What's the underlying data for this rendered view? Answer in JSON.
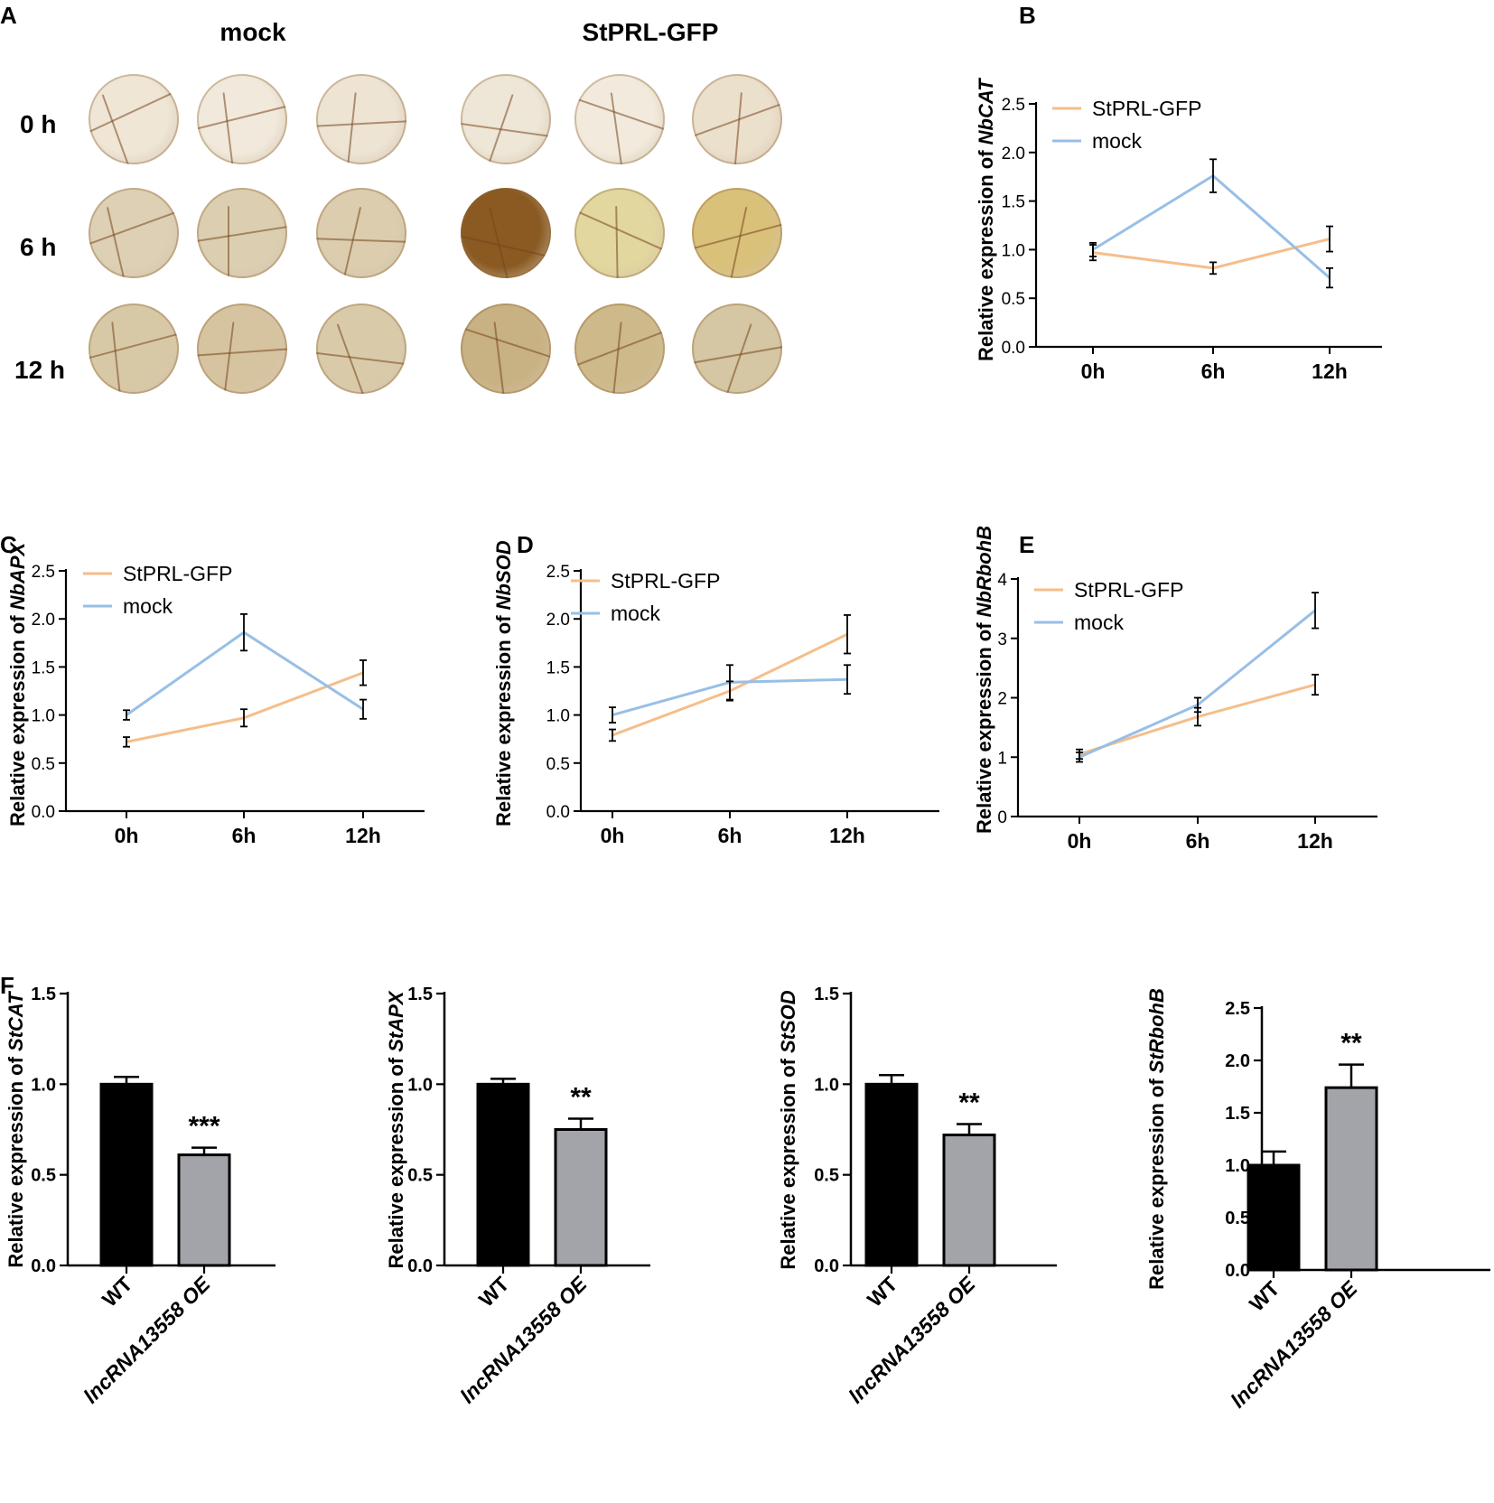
{
  "panel_letters": {
    "a": "A",
    "b": "B",
    "c": "C",
    "d": "D",
    "e": "E",
    "f": "F"
  },
  "photo": {
    "columns": [
      "mock",
      "StPRL-GFP"
    ],
    "rows": [
      "0 h",
      "6 h",
      "12 h"
    ]
  },
  "colors": {
    "stprl": "#f5be8a",
    "mock": "#98bfe6",
    "error": "#000000",
    "wt_bar": "#000000",
    "oe_bar": "#a3a3aa"
  },
  "chart_data": [
    {
      "id": "B",
      "type": "line",
      "gene": "NbCAT",
      "ylabel_prefix": "Relative expression of ",
      "categories": [
        "0h",
        "6h",
        "12h"
      ],
      "ylim": [
        0,
        2.5
      ],
      "yticks": [
        "0.0",
        "0.5",
        "1.0",
        "1.5",
        "2.0",
        "2.5"
      ],
      "series": [
        {
          "name": "StPRL-GFP",
          "values": [
            0.97,
            0.81,
            1.11
          ],
          "errors": [
            0.08,
            0.06,
            0.13
          ]
        },
        {
          "name": "mock",
          "values": [
            1.0,
            1.76,
            0.71
          ],
          "errors": [
            0.07,
            0.17,
            0.1
          ]
        }
      ]
    },
    {
      "id": "C",
      "type": "line",
      "gene": "NbAPX",
      "ylabel_prefix": "Relative expression of ",
      "categories": [
        "0h",
        "6h",
        "12h"
      ],
      "ylim": [
        0,
        2.5
      ],
      "yticks": [
        "0.0",
        "0.5",
        "1.0",
        "1.5",
        "2.0",
        "2.5"
      ],
      "series": [
        {
          "name": "StPRL-GFP",
          "values": [
            0.72,
            0.97,
            1.44
          ],
          "errors": [
            0.05,
            0.09,
            0.13
          ]
        },
        {
          "name": "mock",
          "values": [
            1.0,
            1.86,
            1.06
          ],
          "errors": [
            0.05,
            0.19,
            0.1
          ]
        }
      ]
    },
    {
      "id": "D",
      "type": "line",
      "gene": "NbSOD",
      "ylabel_prefix": "Relative expression of ",
      "categories": [
        "0h",
        "6h",
        "12h"
      ],
      "ylim": [
        0,
        2.5
      ],
      "yticks": [
        "0.0",
        "0.5",
        "1.0",
        "1.5",
        "2.0",
        "2.5"
      ],
      "series": [
        {
          "name": "StPRL-GFP",
          "values": [
            0.79,
            1.25,
            1.84
          ],
          "errors": [
            0.06,
            0.1,
            0.2
          ]
        },
        {
          "name": "mock",
          "values": [
            1.0,
            1.34,
            1.37
          ],
          "errors": [
            0.08,
            0.18,
            0.15
          ]
        }
      ]
    },
    {
      "id": "E",
      "type": "line",
      "gene": "NbRbohB",
      "ylabel_prefix": "Relative expression of ",
      "categories": [
        "0h",
        "6h",
        "12h"
      ],
      "ylim": [
        0,
        4
      ],
      "yticks": [
        "0",
        "1",
        "2",
        "3",
        "4"
      ],
      "series": [
        {
          "name": "StPRL-GFP",
          "values": [
            1.05,
            1.68,
            2.22
          ],
          "errors": [
            0.08,
            0.15,
            0.17
          ]
        },
        {
          "name": "mock",
          "values": [
            1.0,
            1.88,
            3.47
          ],
          "errors": [
            0.08,
            0.12,
            0.3
          ]
        }
      ]
    },
    {
      "id": "F1",
      "type": "bar",
      "gene": "StCAT",
      "ylabel_prefix": "Relative expression of ",
      "categories": [
        "WT",
        "lncRNA13558 OE"
      ],
      "values": [
        1.0,
        0.61
      ],
      "errors": [
        0.04,
        0.04
      ],
      "significance": "***",
      "ylim": [
        0,
        1.5
      ],
      "yticks": [
        "0.0",
        "0.5",
        "1.0",
        "1.5"
      ]
    },
    {
      "id": "F2",
      "type": "bar",
      "gene": "StAPX",
      "ylabel_prefix": "Relative expression of ",
      "categories": [
        "WT",
        "lncRNA13558 OE"
      ],
      "values": [
        1.0,
        0.75
      ],
      "errors": [
        0.03,
        0.06
      ],
      "significance": "**",
      "ylim": [
        0,
        1.5
      ],
      "yticks": [
        "0.0",
        "0.5",
        "1.0",
        "1.5"
      ]
    },
    {
      "id": "F3",
      "type": "bar",
      "gene": "StSOD",
      "ylabel_prefix": "Relative expression of ",
      "categories": [
        "WT",
        "lncRNA13558 OE"
      ],
      "values": [
        1.0,
        0.72
      ],
      "errors": [
        0.05,
        0.06
      ],
      "significance": "**",
      "ylim": [
        0,
        1.5
      ],
      "yticks": [
        "0.0",
        "0.5",
        "1.0",
        "1.5"
      ]
    },
    {
      "id": "F4",
      "type": "bar",
      "gene": "StRbohB",
      "ylabel_prefix": "Relative expression of ",
      "categories": [
        "WT",
        "lncRNA13558 OE"
      ],
      "values": [
        1.0,
        1.74
      ],
      "errors": [
        0.13,
        0.22
      ],
      "significance": "**",
      "ylim": [
        0,
        2.5
      ],
      "yticks": [
        "0.0",
        "0.5",
        "1.0",
        "1.5",
        "2.0",
        "2.5"
      ]
    }
  ]
}
